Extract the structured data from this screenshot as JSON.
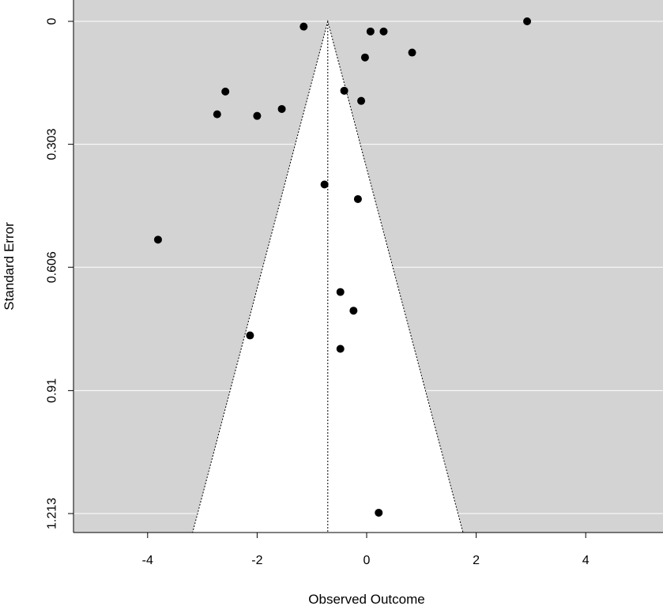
{
  "chart_data": {
    "type": "scatter",
    "subtype": "funnel-plot",
    "title": "",
    "xlabel": "Observed Outcome",
    "ylabel": "Standard Error",
    "xlim": [
      -5.3,
      5.4
    ],
    "ylim": [
      1.213,
      0
    ],
    "y_reversed": true,
    "x_ticks": [
      "-4",
      "-2",
      "0",
      "2",
      "4"
    ],
    "y_ticks": [
      "0",
      "0.303",
      "0.606",
      "0.91",
      "1.213"
    ],
    "grid": "horizontal",
    "colors": {
      "panel_background": "#d3d3d3",
      "funnel_fill": "#ffffff",
      "gridline": "#ffffff",
      "points": "#000000"
    },
    "funnel": {
      "center": -0.71,
      "level": 0.95,
      "critical_value": 1.96
    },
    "points": [
      {
        "x": 2.93,
        "y": 0.0
      },
      {
        "x": -1.15,
        "y": 0.013
      },
      {
        "x": 0.07,
        "y": 0.025
      },
      {
        "x": 0.31,
        "y": 0.025
      },
      {
        "x": 0.83,
        "y": 0.077
      },
      {
        "x": -0.03,
        "y": 0.089
      },
      {
        "x": -0.41,
        "y": 0.171
      },
      {
        "x": -0.1,
        "y": 0.196
      },
      {
        "x": -2.58,
        "y": 0.173
      },
      {
        "x": -1.55,
        "y": 0.216
      },
      {
        "x": -2.73,
        "y": 0.229
      },
      {
        "x": -2.0,
        "y": 0.233
      },
      {
        "x": -0.77,
        "y": 0.402
      },
      {
        "x": -0.16,
        "y": 0.438
      },
      {
        "x": -3.81,
        "y": 0.538
      },
      {
        "x": -0.48,
        "y": 0.667
      },
      {
        "x": -0.24,
        "y": 0.713
      },
      {
        "x": -2.13,
        "y": 0.774
      },
      {
        "x": -0.48,
        "y": 0.807
      },
      {
        "x": 0.22,
        "y": 1.211
      }
    ]
  }
}
